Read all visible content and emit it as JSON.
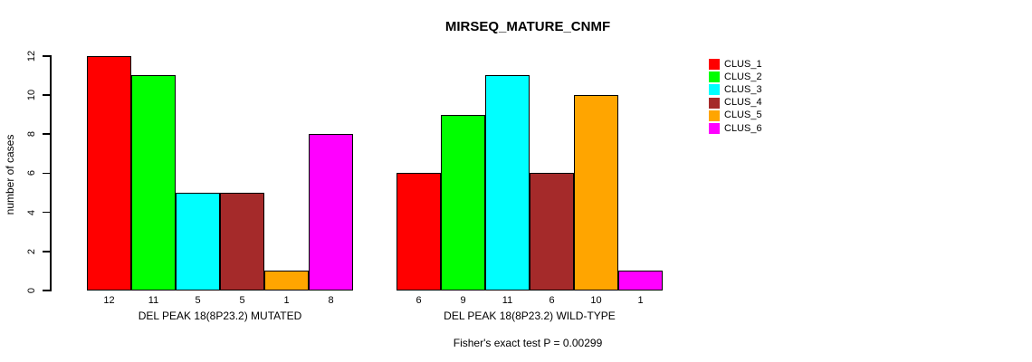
{
  "figure": {
    "title": "MIRSEQ_MATURE_CNMF",
    "caption": "Fisher's exact test P = 0.00299"
  },
  "chart_data": {
    "type": "bar",
    "title": "MIRSEQ_MATURE_CNMF",
    "xlabel": "",
    "ylabel": "number of cases",
    "ylim": [
      0,
      12
    ],
    "yticks": [
      0,
      2,
      4,
      6,
      8,
      10,
      12
    ],
    "grid": false,
    "legend_position": "right",
    "series": [
      {
        "name": "CLUS_1",
        "color": "#FF0000"
      },
      {
        "name": "CLUS_2",
        "color": "#00FF00"
      },
      {
        "name": "CLUS_3",
        "color": "#00FFFF"
      },
      {
        "name": "CLUS_4",
        "color": "#A52A2A"
      },
      {
        "name": "CLUS_5",
        "color": "#FFA500"
      },
      {
        "name": "CLUS_6",
        "color": "#FF00FF"
      }
    ],
    "groups": [
      {
        "label": "DEL PEAK 18(8P23.2) MUTATED",
        "values": [
          12,
          11,
          5,
          5,
          1,
          8
        ]
      },
      {
        "label": "DEL PEAK 18(8P23.2) WILD-TYPE",
        "values": [
          6,
          9,
          11,
          6,
          10,
          1
        ]
      }
    ],
    "bar_value_labels_shown": true,
    "annotation": "Fisher's exact test P = 0.00299"
  }
}
